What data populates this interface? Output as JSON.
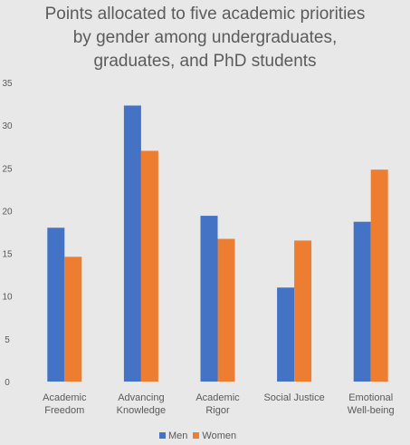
{
  "chart_data": {
    "type": "bar",
    "title_lines": [
      "Points allocated to five academic priorities",
      "by gender among undergraduates,",
      "graduates, and PhD students"
    ],
    "categories": [
      [
        "Academic",
        "Freedom"
      ],
      [
        "Advancing",
        "Knowledge"
      ],
      [
        "Academic",
        "Rigor"
      ],
      [
        "Social Justice"
      ],
      [
        "Emotional",
        "Well-being"
      ]
    ],
    "series": [
      {
        "name": "Men",
        "color": "#4472c4",
        "values": [
          18,
          32.3,
          19.4,
          11,
          18.7
        ]
      },
      {
        "name": "Women",
        "color": "#ed7d31",
        "values": [
          14.6,
          27,
          16.7,
          16.5,
          24.8
        ]
      }
    ],
    "ylim": [
      0,
      35
    ],
    "yticks": [
      0,
      5,
      10,
      15,
      20,
      25,
      30,
      35
    ],
    "grid": false,
    "legend_position": "bottom"
  }
}
